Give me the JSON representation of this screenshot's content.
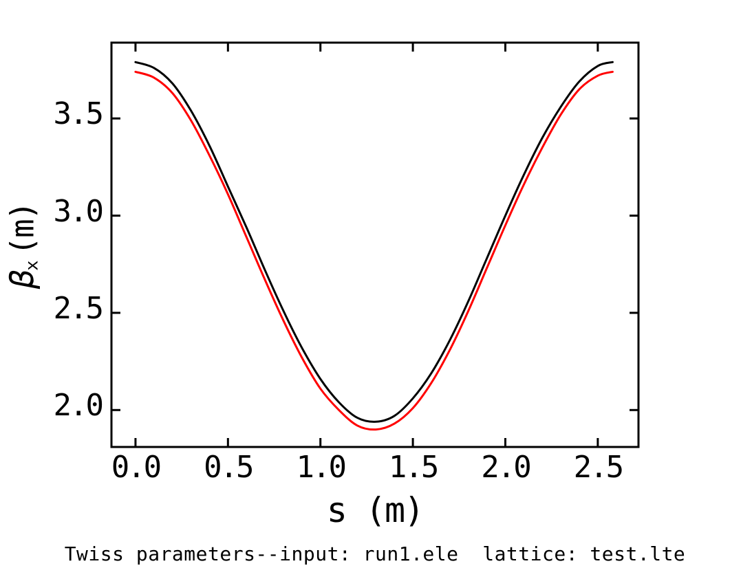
{
  "page": {
    "background": "#ffffff",
    "axis_color": "#000000"
  },
  "caption": "Twiss parameters--input: run1.ele  lattice: test.lte",
  "axes": {
    "x": {
      "label": "s (m)",
      "tick_labels": [
        "0.0",
        "0.5",
        "1.0",
        "1.5",
        "2.0",
        "2.5"
      ]
    },
    "y": {
      "symbol": "β",
      "subscript": "x",
      "units": "(m)",
      "tick_labels": [
        "2.0",
        "2.5",
        "3.0",
        "3.5"
      ]
    }
  },
  "chart_data": {
    "type": "line",
    "title": "Twiss parameters--input: run1.ele  lattice: test.lte",
    "xlabel": "s (m)",
    "ylabel": "beta_x (m)",
    "xlim": [
      -0.13,
      2.72
    ],
    "ylim": [
      1.81,
      3.89
    ],
    "grid": false,
    "legend_position": "none",
    "x_ticks": {
      "values": [
        0.0,
        0.5,
        1.0,
        1.5,
        2.0,
        2.5
      ],
      "labels": [
        "0.0",
        "0.5",
        "1.0",
        "1.5",
        "2.0",
        "2.5"
      ]
    },
    "y_ticks": {
      "values": [
        2.0,
        2.5,
        3.0,
        3.5
      ],
      "labels": [
        "2.0",
        "2.5",
        "3.0",
        "3.5"
      ]
    },
    "x": [
      0.0,
      0.1,
      0.2,
      0.3,
      0.4,
      0.5,
      0.6,
      0.7,
      0.8,
      0.9,
      1.0,
      1.1,
      1.2,
      1.3,
      1.4,
      1.5,
      1.6,
      1.7,
      1.8,
      1.9,
      2.0,
      2.1,
      2.2,
      2.3,
      2.4,
      2.5,
      2.58
    ],
    "series": [
      {
        "name": "beta_x",
        "color": "#000000",
        "values": [
          3.79,
          3.76,
          3.68,
          3.54,
          3.36,
          3.15,
          2.94,
          2.72,
          2.51,
          2.32,
          2.16,
          2.04,
          1.96,
          1.94,
          1.97,
          2.06,
          2.19,
          2.36,
          2.56,
          2.78,
          3.0,
          3.21,
          3.4,
          3.56,
          3.69,
          3.77,
          3.79
        ]
      },
      {
        "name": "beta_x (red)",
        "color": "#ff0000",
        "values": [
          3.74,
          3.71,
          3.63,
          3.49,
          3.31,
          3.11,
          2.89,
          2.67,
          2.46,
          2.27,
          2.11,
          2.0,
          1.92,
          1.9,
          1.93,
          2.01,
          2.14,
          2.31,
          2.51,
          2.73,
          2.95,
          3.16,
          3.35,
          3.52,
          3.65,
          3.72,
          3.74
        ]
      }
    ]
  }
}
